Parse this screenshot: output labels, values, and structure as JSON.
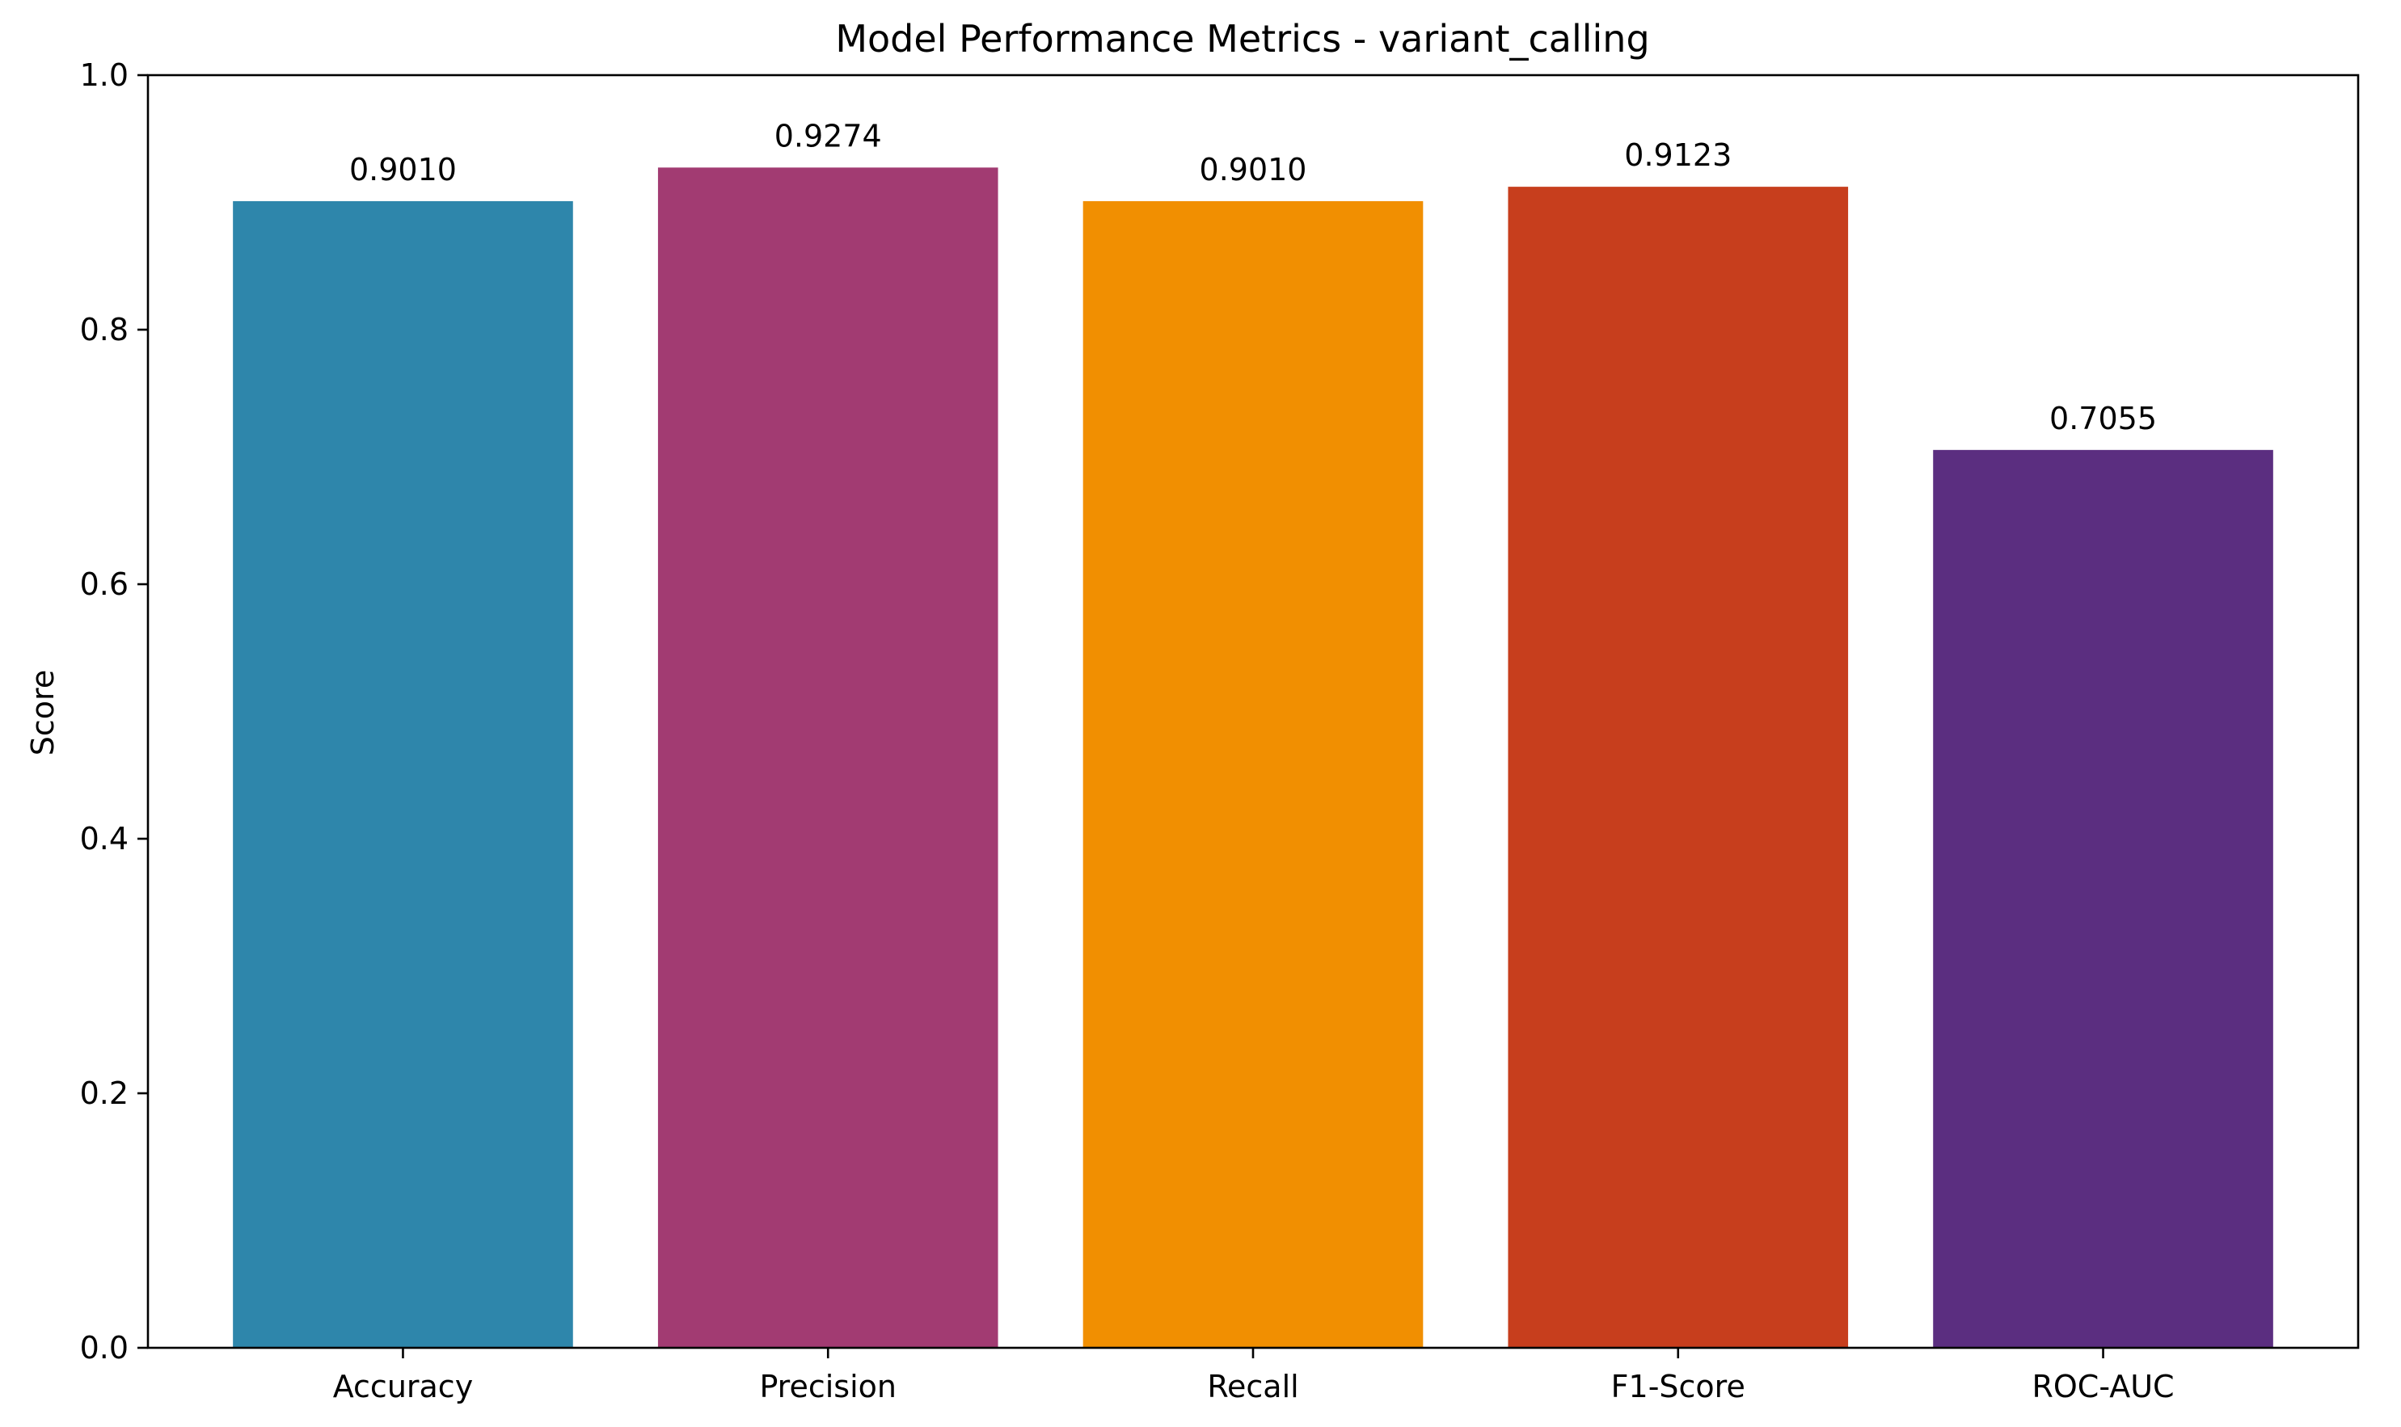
{
  "chart_data": {
    "type": "bar",
    "title": "Model Performance Metrics - variant_calling",
    "xlabel": "",
    "ylabel": "Score",
    "categories": [
      "Accuracy",
      "Precision",
      "Recall",
      "F1-Score",
      "ROC-AUC"
    ],
    "values": [
      0.901,
      0.9274,
      0.901,
      0.9123,
      0.7055
    ],
    "value_labels": [
      "0.9010",
      "0.9274",
      "0.9010",
      "0.9123",
      "0.7055"
    ],
    "colors": [
      "#2e86ab",
      "#a23b72",
      "#f18f01",
      "#c73e1d",
      "#5b2e80"
    ],
    "ylim": [
      0,
      1.0
    ],
    "yticks": [
      0.0,
      0.2,
      0.4,
      0.6,
      0.8,
      1.0
    ],
    "ytick_labels": [
      "0.0",
      "0.2",
      "0.4",
      "0.6",
      "0.8",
      "1.0"
    ],
    "grid": false,
    "legend": "none"
  }
}
